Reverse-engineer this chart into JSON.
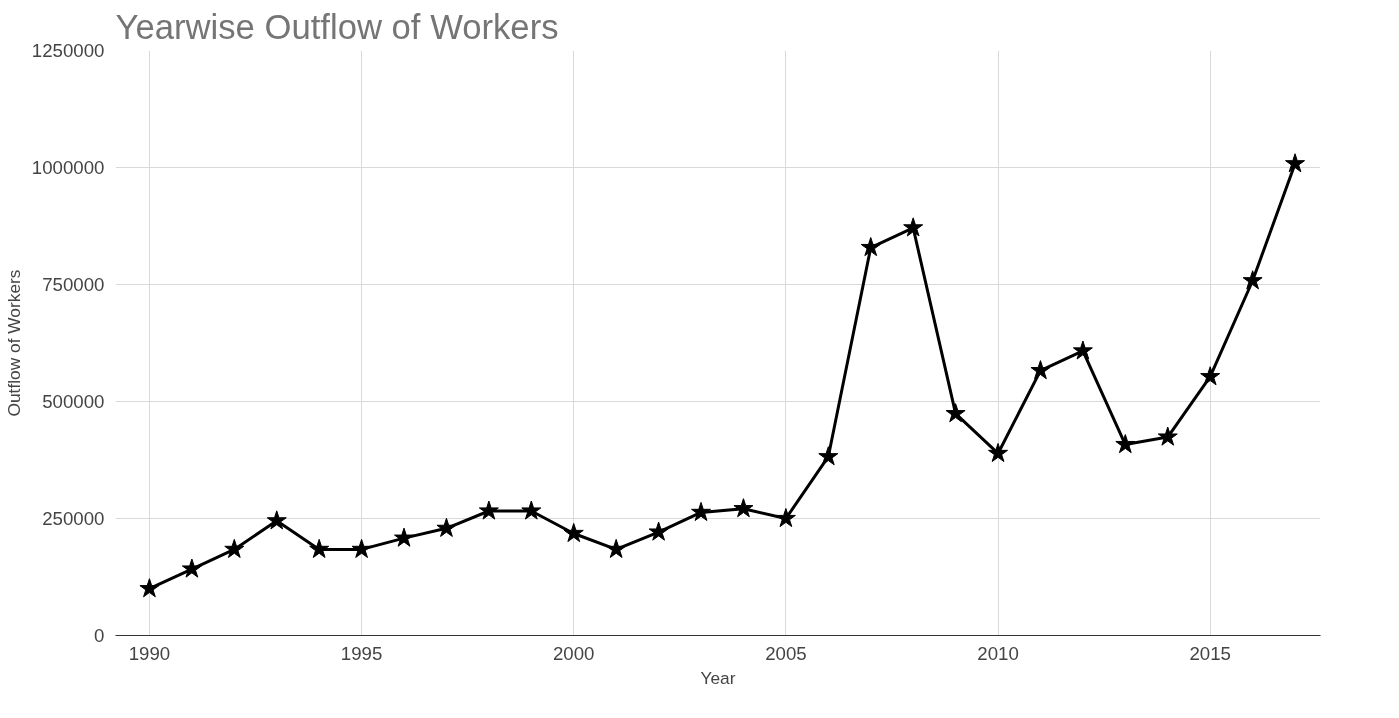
{
  "chart_data": {
    "type": "line",
    "title": "Yearwise Outflow of Workers",
    "xlabel": "Year",
    "ylabel": "Outflow of Workers",
    "x": [
      1990,
      1991,
      1992,
      1993,
      1994,
      1995,
      1996,
      1997,
      1998,
      1999,
      2000,
      2001,
      2002,
      2003,
      2004,
      2005,
      2006,
      2007,
      2008,
      2009,
      2010,
      2011,
      2012,
      2013,
      2014,
      2015,
      2016,
      2017
    ],
    "series": [
      {
        "color": "#000000",
        "values": [
          100000,
          142000,
          184000,
          245000,
          184000,
          184000,
          208000,
          229000,
          266000,
          266000,
          218000,
          184000,
          221000,
          263000,
          271000,
          250000,
          382000,
          829000,
          871000,
          474000,
          389000,
          566000,
          608000,
          408000,
          424000,
          553000,
          758000,
          1008000
        ]
      }
    ],
    "xlim": [
      1989.2,
      2017.6
    ],
    "xticks": [
      1990,
      1995,
      2000,
      2005,
      2010,
      2015
    ],
    "ylim": [
      0,
      1250000
    ],
    "yticks": [
      0,
      250000,
      500000,
      750000,
      1000000,
      1250000
    ],
    "grid": true,
    "marker": "star",
    "line_style": "solid"
  }
}
